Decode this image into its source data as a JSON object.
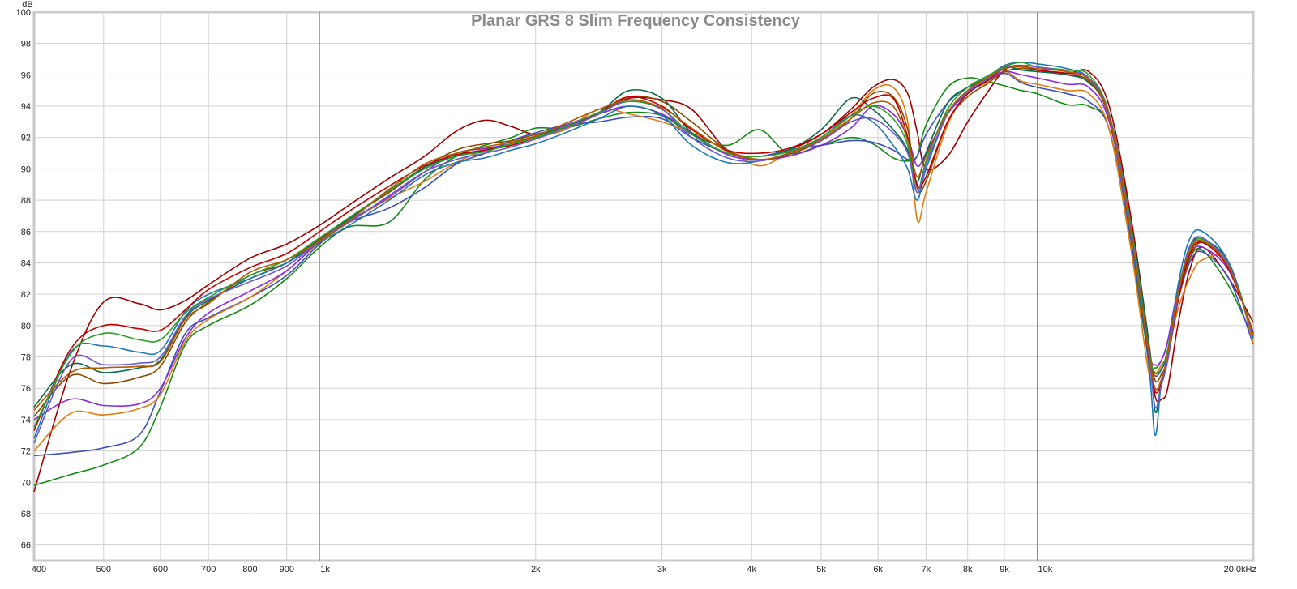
{
  "chart_data": {
    "type": "line",
    "title": "Planar GRS 8 Slim Frequency Consistency",
    "ylabel": "dB",
    "xscale": "log",
    "xlim": [
      400,
      20000
    ],
    "ylim": [
      65,
      100
    ],
    "grid": true,
    "y_ticks": [
      {
        "v": 100,
        "label": "100"
      },
      {
        "v": 98,
        "label": "98"
      },
      {
        "v": 96,
        "label": "96"
      },
      {
        "v": 94,
        "label": "94"
      },
      {
        "v": 92,
        "label": "92"
      },
      {
        "v": 90,
        "label": "90"
      },
      {
        "v": 88,
        "label": "88"
      },
      {
        "v": 86,
        "label": "86"
      },
      {
        "v": 84,
        "label": "84"
      },
      {
        "v": 82,
        "label": "82"
      },
      {
        "v": 80,
        "label": "80"
      },
      {
        "v": 78,
        "label": "78"
      },
      {
        "v": 76,
        "label": "76"
      },
      {
        "v": 74,
        "label": "74"
      },
      {
        "v": 72,
        "label": "72"
      },
      {
        "v": 70,
        "label": "70"
      },
      {
        "v": 68,
        "label": "68"
      },
      {
        "v": 66,
        "label": "66"
      }
    ],
    "x_ticks": [
      {
        "v": 400,
        "label": "400"
      },
      {
        "v": 500,
        "label": "500"
      },
      {
        "v": 600,
        "label": "600"
      },
      {
        "v": 700,
        "label": "700"
      },
      {
        "v": 800,
        "label": "800"
      },
      {
        "v": 900,
        "label": "900"
      },
      {
        "v": 1000,
        "label": "1k"
      },
      {
        "v": 2000,
        "label": "2k"
      },
      {
        "v": 3000,
        "label": "3k"
      },
      {
        "v": 4000,
        "label": "4k"
      },
      {
        "v": 5000,
        "label": "5k"
      },
      {
        "v": 6000,
        "label": "6k"
      },
      {
        "v": 7000,
        "label": "7k"
      },
      {
        "v": 8000,
        "label": "8k"
      },
      {
        "v": 9000,
        "label": "9k"
      },
      {
        "v": 10000,
        "label": "10k"
      },
      {
        "v": 20000,
        "label": "20.0kHz"
      }
    ],
    "major_x": [
      1000,
      10000
    ],
    "x": [
      400,
      450,
      500,
      560,
      600,
      650,
      700,
      800,
      900,
      1000,
      1100,
      1250,
      1400,
      1550,
      1700,
      1850,
      2000,
      2200,
      2450,
      2700,
      3000,
      3300,
      3700,
      4100,
      4500,
      5000,
      5500,
      5900,
      6300,
      6600,
      6800,
      7000,
      7500,
      8000,
      8500,
      9000,
      9500,
      10000,
      11000,
      11800,
      12600,
      13500,
      14300,
      14600,
      14900,
      15200,
      15700,
      16300,
      17000,
      18500,
      20000
    ],
    "series": [
      {
        "color": "#a00000",
        "values": [
          69.4,
          77.2,
          81.5,
          81.4,
          81.0,
          81.6,
          82.6,
          84.3,
          85.2,
          86.4,
          87.7,
          89.4,
          90.8,
          92.4,
          93.1,
          92.7,
          92.2,
          92.6,
          93.5,
          94.5,
          94.4,
          93.8,
          91.2,
          90.8,
          91.2,
          92.2,
          93.8,
          95.2,
          95.7,
          94.8,
          92.4,
          90.0,
          90.8,
          93.0,
          94.8,
          96.3,
          96.6,
          96.3,
          96.1,
          96.2,
          94.0,
          87.0,
          79.0,
          75.5,
          75.3,
          76.0,
          80.0,
          83.5,
          85.0,
          83.0,
          80.2
        ]
      },
      {
        "color": "#148a14",
        "values": [
          69.8,
          70.5,
          71.1,
          72.2,
          74.8,
          78.8,
          80.0,
          81.3,
          83.0,
          85.0,
          86.3,
          86.6,
          89.3,
          90.8,
          91.5,
          92.0,
          92.6,
          92.6,
          93.2,
          93.6,
          93.4,
          92.2,
          91.5,
          92.5,
          91.0,
          91.5,
          92.0,
          91.6,
          90.7,
          90.5,
          90.8,
          92.8,
          95.2,
          95.8,
          95.6,
          95.3,
          95.0,
          94.8,
          94.1,
          94.0,
          92.5,
          85.0,
          78.0,
          77.3,
          77.8,
          79.0,
          82.0,
          84.3,
          84.8,
          82.5,
          79.2
        ]
      },
      {
        "color": "#3c50c0",
        "values": [
          71.7,
          71.9,
          72.2,
          73.0,
          75.8,
          79.5,
          80.5,
          81.8,
          83.2,
          85.2,
          86.6,
          87.5,
          88.8,
          90.3,
          91.0,
          91.8,
          92.3,
          92.8,
          93.0,
          93.3,
          93.2,
          92.0,
          91.0,
          90.8,
          91.2,
          91.5,
          91.8,
          91.7,
          91.2,
          90.6,
          90.8,
          92.2,
          94.2,
          95.2,
          95.6,
          96.1,
          95.5,
          95.2,
          94.8,
          94.3,
          92.5,
          85.5,
          78.0,
          76.8,
          77.2,
          78.2,
          81.5,
          84.0,
          84.7,
          83.0,
          78.8
        ]
      },
      {
        "color": "#e07b10",
        "values": [
          72.0,
          74.4,
          74.3,
          74.7,
          75.6,
          79.0,
          80.4,
          81.8,
          83.5,
          85.3,
          86.6,
          88.1,
          89.2,
          90.4,
          91.2,
          91.6,
          92.0,
          92.5,
          93.8,
          93.5,
          93.0,
          92.3,
          91.2,
          90.2,
          91.0,
          92.0,
          93.4,
          95.0,
          95.2,
          93.0,
          86.8,
          88.5,
          92.8,
          94.8,
          95.5,
          96.2,
          95.6,
          95.4,
          95.0,
          94.8,
          92.5,
          85.0,
          77.0,
          76.9,
          77.5,
          78.2,
          81.0,
          83.0,
          84.2,
          84.0,
          78.9
        ]
      },
      {
        "color": "#8a2be2",
        "values": [
          74.0,
          75.3,
          74.9,
          75.0,
          76.0,
          79.2,
          80.8,
          82.2,
          83.5,
          85.4,
          86.7,
          88.2,
          89.8,
          91.0,
          91.3,
          91.6,
          92.1,
          92.8,
          93.5,
          94.0,
          93.5,
          92.3,
          90.9,
          90.6,
          90.8,
          91.5,
          92.6,
          94.0,
          93.5,
          92.0,
          90.2,
          91.0,
          93.5,
          94.8,
          95.6,
          96.2,
          96.0,
          95.8,
          95.4,
          95.2,
          93.0,
          86.0,
          78.5,
          77.5,
          77.8,
          79.0,
          82.3,
          84.5,
          85.0,
          83.5,
          79.6
        ]
      },
      {
        "color": "#8c4a00",
        "values": [
          74.2,
          76.8,
          76.3,
          76.7,
          77.4,
          80.2,
          81.5,
          83.2,
          84.0,
          85.5,
          86.9,
          88.5,
          90.1,
          91.2,
          91.6,
          91.8,
          92.2,
          92.7,
          93.5,
          94.6,
          94.3,
          93.0,
          91.2,
          90.6,
          90.9,
          91.8,
          93.2,
          94.8,
          94.6,
          92.5,
          88.8,
          89.2,
          93.0,
          94.6,
          95.4,
          96.2,
          96.4,
          96.3,
          96.0,
          95.6,
          93.2,
          86.0,
          78.8,
          76.5,
          76.9,
          77.9,
          81.5,
          84.2,
          85.3,
          83.8,
          79.5
        ]
      },
      {
        "color": "#0a6a4a",
        "values": [
          74.8,
          77.5,
          77.0,
          77.3,
          77.8,
          80.5,
          81.6,
          83.0,
          84.0,
          85.6,
          86.8,
          88.6,
          90.1,
          90.8,
          91.2,
          91.6,
          92.1,
          92.7,
          93.6,
          95.0,
          94.5,
          92.3,
          91.0,
          90.8,
          91.2,
          92.5,
          94.5,
          93.8,
          92.5,
          91.2,
          89.2,
          91.0,
          94.2,
          95.2,
          95.8,
          96.5,
          96.3,
          96.2,
          96.0,
          95.5,
          93.5,
          86.5,
          79.0,
          74.5,
          76.5,
          78.0,
          82.0,
          85.0,
          85.5,
          84.0,
          79.3
        ]
      },
      {
        "color": "#1f77b4",
        "values": [
          72.8,
          78.3,
          78.7,
          78.3,
          78.4,
          80.9,
          82.0,
          83.0,
          84.0,
          85.3,
          86.4,
          88.0,
          89.6,
          90.4,
          90.7,
          91.2,
          91.6,
          92.3,
          93.2,
          94.0,
          93.4,
          91.5,
          90.4,
          90.5,
          91.0,
          92.0,
          93.4,
          93.0,
          91.5,
          90.0,
          88.0,
          90.0,
          93.5,
          95.0,
          95.8,
          96.6,
          96.8,
          96.7,
          96.4,
          95.8,
          93.5,
          86.0,
          77.5,
          73.0,
          76.5,
          78.0,
          82.5,
          85.5,
          86.0,
          84.0,
          79.2
        ]
      },
      {
        "color": "#c00000",
        "values": [
          73.3,
          78.5,
          80.0,
          79.8,
          79.7,
          81.0,
          82.3,
          83.7,
          84.6,
          86.0,
          87.3,
          88.9,
          90.2,
          90.9,
          91.2,
          91.5,
          92.0,
          92.6,
          93.6,
          94.6,
          94.0,
          92.5,
          91.2,
          91.0,
          91.3,
          92.2,
          93.6,
          94.5,
          94.5,
          92.0,
          89.0,
          89.5,
          93.0,
          94.8,
          95.6,
          96.4,
          96.6,
          96.3,
          96.1,
          95.8,
          93.5,
          86.5,
          78.0,
          75.8,
          76.3,
          77.8,
          81.5,
          84.5,
          85.3,
          83.6,
          79.5
        ]
      },
      {
        "color": "#2ca02c",
        "values": [
          73.5,
          78.2,
          79.5,
          79.1,
          79.1,
          80.8,
          81.8,
          83.2,
          84.2,
          85.6,
          86.9,
          88.6,
          90.0,
          90.8,
          91.1,
          91.6,
          92.0,
          92.7,
          93.6,
          94.3,
          93.8,
          92.2,
          91.0,
          90.8,
          91.1,
          92.0,
          93.4,
          94.0,
          93.2,
          91.5,
          88.5,
          90.5,
          93.8,
          95.2,
          95.9,
          96.5,
          96.8,
          96.5,
          96.3,
          96.0,
          93.5,
          86.5,
          78.5,
          77.0,
          77.3,
          78.5,
          82.0,
          84.8,
          85.5,
          83.8,
          79.4
        ]
      },
      {
        "color": "#6a5acd",
        "values": [
          72.5,
          77.8,
          77.5,
          77.6,
          78.0,
          80.6,
          81.7,
          82.8,
          83.8,
          85.4,
          86.6,
          88.3,
          89.8,
          90.6,
          91.0,
          91.4,
          91.9,
          92.6,
          93.5,
          94.4,
          93.8,
          92.0,
          90.7,
          90.5,
          91.0,
          91.8,
          93.0,
          93.2,
          92.3,
          91.0,
          88.5,
          90.3,
          93.5,
          94.9,
          95.7,
          96.4,
          96.6,
          96.5,
          96.2,
          95.8,
          93.4,
          86.2,
          78.2,
          74.8,
          76.2,
          77.8,
          81.8,
          85.0,
          85.6,
          83.8,
          79.3
        ]
      },
      {
        "color": "#b05a00",
        "values": [
          74.6,
          77.0,
          77.3,
          77.4,
          77.7,
          80.4,
          81.4,
          83.4,
          84.2,
          85.4,
          86.7,
          88.7,
          90.3,
          91.0,
          91.4,
          91.7,
          92.1,
          92.9,
          93.8,
          94.4,
          93.9,
          92.6,
          91.1,
          90.6,
          91.0,
          91.9,
          93.2,
          94.2,
          94.0,
          91.8,
          89.5,
          90.8,
          93.6,
          95.0,
          95.8,
          96.4,
          96.5,
          96.4,
          96.2,
          95.7,
          93.3,
          86.0,
          78.4,
          76.0,
          76.6,
          78.2,
          82.0,
          84.7,
          85.4,
          83.7,
          79.4
        ]
      }
    ]
  }
}
